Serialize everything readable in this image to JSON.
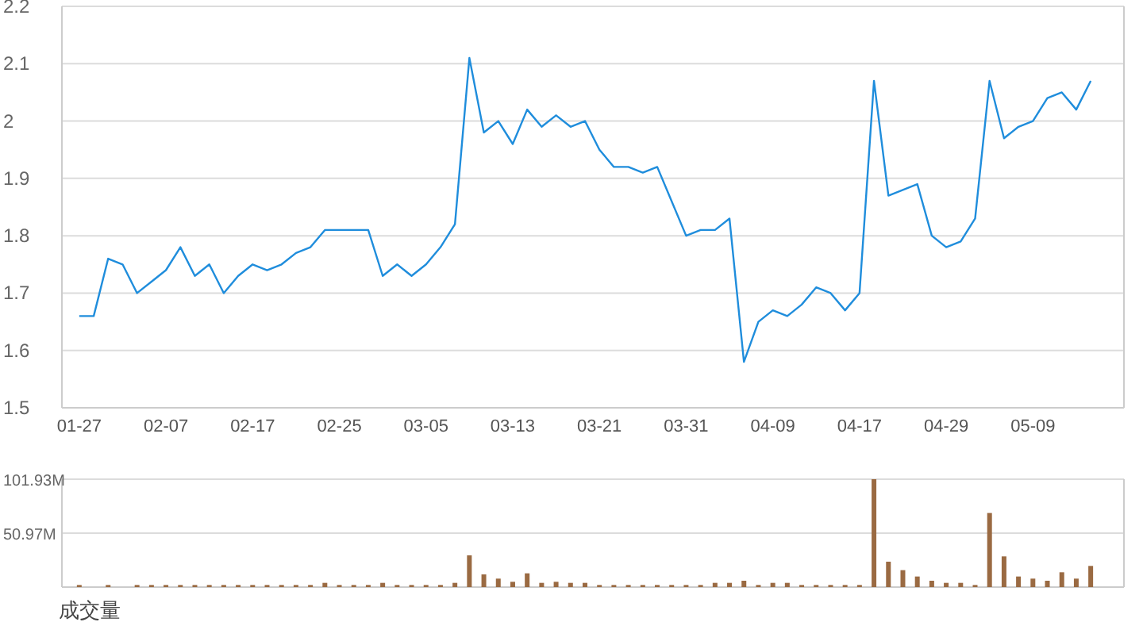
{
  "chart_data": [
    {
      "type": "line",
      "categories": [
        "01-27",
        null,
        null,
        null,
        null,
        null,
        "02-07",
        null,
        null,
        null,
        null,
        null,
        "02-17",
        null,
        null,
        null,
        null,
        null,
        "02-25",
        null,
        null,
        null,
        null,
        null,
        "03-05",
        null,
        null,
        null,
        null,
        null,
        "03-13",
        null,
        null,
        null,
        null,
        null,
        "03-21",
        null,
        null,
        null,
        null,
        null,
        "03-31",
        null,
        null,
        null,
        null,
        null,
        "04-09",
        null,
        null,
        null,
        null,
        null,
        "04-17",
        null,
        null,
        null,
        null,
        null,
        "04-29",
        null,
        null,
        null,
        null,
        null,
        "05-09",
        null,
        null,
        null,
        null
      ],
      "series": [
        {
          "color": "#1f8ddc",
          "values": [
            1.66,
            1.66,
            1.76,
            1.75,
            1.7,
            1.72,
            1.74,
            1.78,
            1.73,
            1.75,
            1.7,
            1.73,
            1.75,
            1.74,
            1.75,
            1.77,
            1.78,
            1.81,
            1.81,
            1.81,
            1.81,
            1.73,
            1.75,
            1.73,
            1.75,
            1.78,
            1.82,
            2.11,
            1.98,
            2.0,
            1.96,
            2.02,
            1.99,
            2.01,
            1.99,
            2.0,
            1.95,
            1.92,
            1.92,
            1.91,
            1.92,
            1.86,
            1.8,
            1.81,
            1.81,
            1.83,
            1.58,
            1.65,
            1.67,
            1.66,
            1.68,
            1.71,
            1.7,
            1.67,
            1.7,
            2.07,
            1.87,
            1.88,
            1.89,
            1.8,
            1.78,
            1.79,
            1.83,
            2.07,
            1.97,
            1.99,
            2.0,
            2.04,
            2.05,
            2.02,
            2.07
          ]
        }
      ],
      "ylim": [
        1.5,
        2.2
      ],
      "yticks": [
        1.5,
        1.6,
        1.7,
        1.8,
        1.9,
        2,
        2.1,
        2.2
      ],
      "grid": "y"
    },
    {
      "type": "bar",
      "categories": [
        null,
        null,
        null,
        null,
        null,
        null,
        null,
        null,
        null,
        null,
        null,
        null,
        null,
        null,
        null,
        null,
        null,
        null,
        null,
        null,
        null,
        null,
        null,
        null,
        null,
        null,
        null,
        null,
        null,
        null,
        null,
        null,
        null,
        null,
        null,
        null,
        null,
        null,
        null,
        null,
        null,
        null,
        null,
        null,
        null,
        null,
        null,
        null,
        null,
        null,
        null,
        null,
        null,
        null,
        null,
        null,
        null,
        null,
        null,
        null,
        null,
        null,
        null,
        null,
        null,
        null,
        null,
        null,
        null,
        null,
        null
      ],
      "series": [
        {
          "color": "#9a6a42",
          "values": [
            2,
            0,
            2,
            0,
            2,
            2,
            2,
            2,
            2,
            2,
            2,
            2,
            2,
            2,
            2,
            2,
            2,
            4,
            2,
            2,
            2,
            4,
            2,
            2,
            2,
            2,
            4,
            30,
            12,
            8,
            5,
            13,
            4,
            5,
            4,
            4,
            2,
            2,
            2,
            2,
            2,
            2,
            2,
            2,
            4,
            4,
            6,
            2,
            4,
            4,
            2,
            2,
            2,
            2,
            2,
            101.93,
            24,
            16,
            10,
            6,
            4,
            4,
            2,
            70,
            29,
            10,
            8,
            6,
            14,
            8,
            20
          ]
        }
      ],
      "ylim": [
        0,
        101.93
      ],
      "yticks": [
        {
          "value": 50.97,
          "label": "50.97M"
        },
        {
          "value": 101.93,
          "label": "101.93M"
        }
      ],
      "grid": "y",
      "xlabel": "成交量"
    }
  ]
}
